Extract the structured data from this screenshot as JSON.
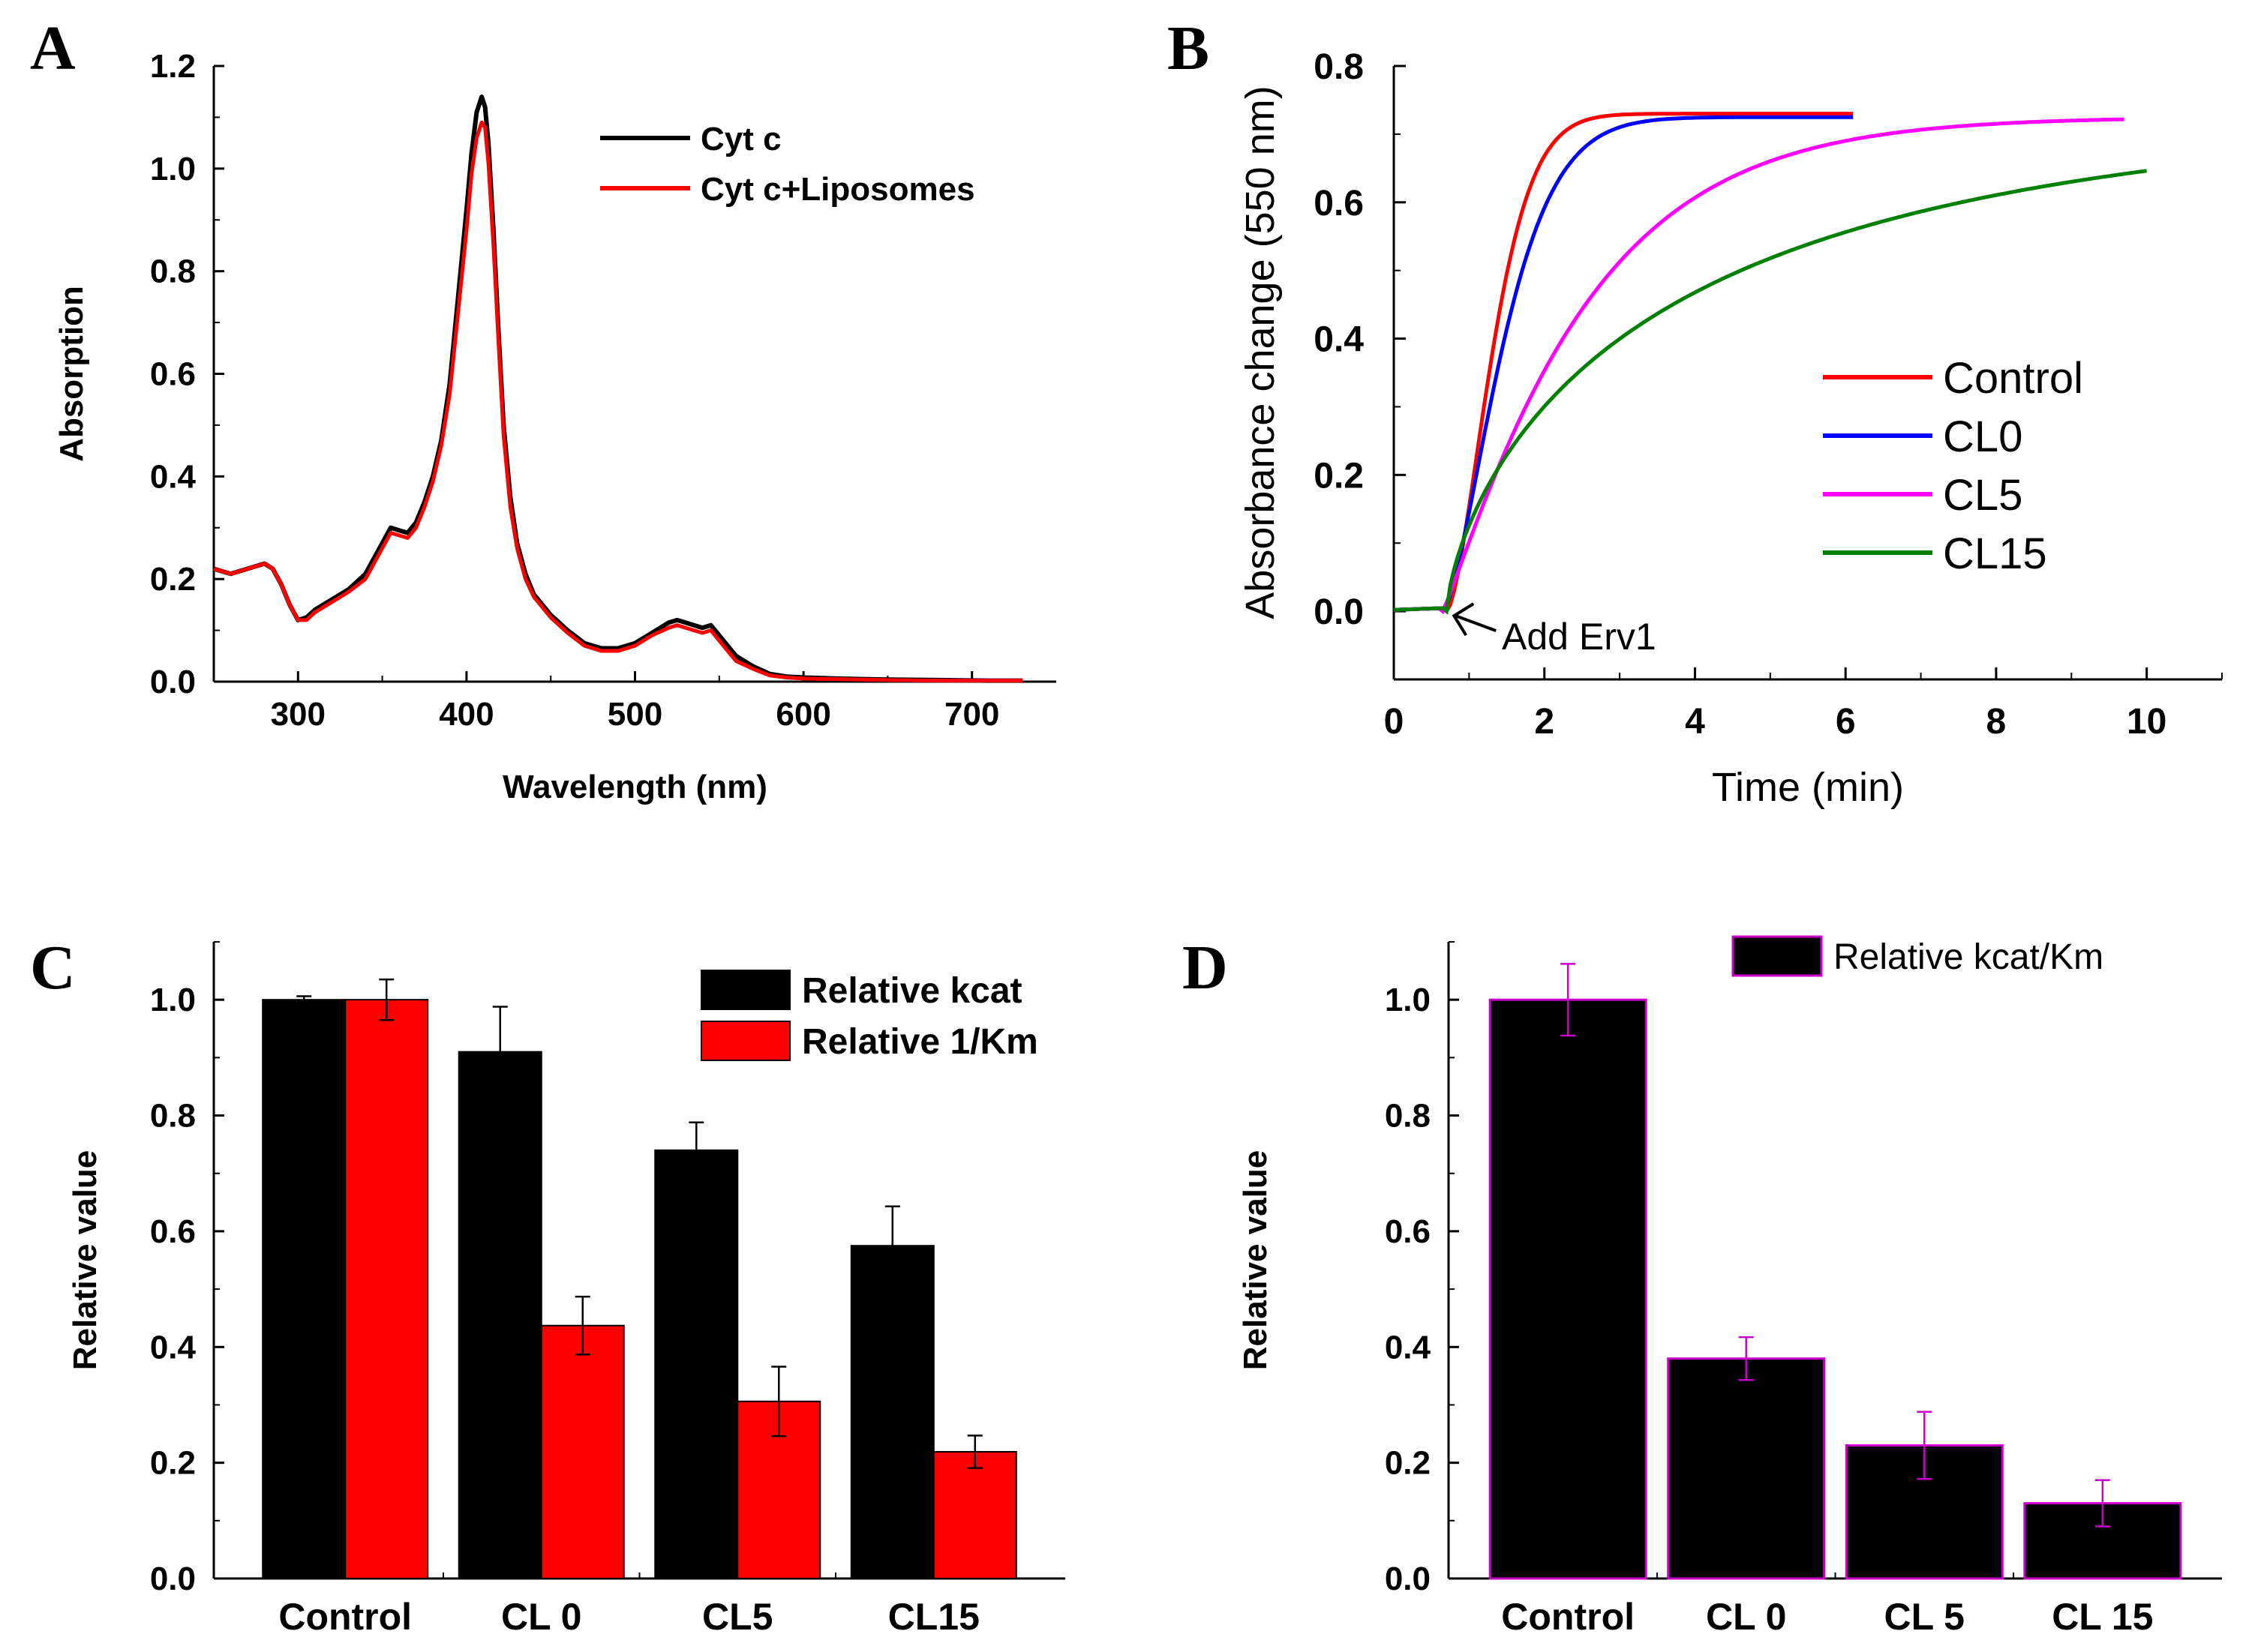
{
  "chart_data": [
    {
      "panel": "A",
      "type": "line",
      "xlabel": "Wavelength (nm)",
      "ylabel": "Absorption",
      "xlim": [
        250,
        750
      ],
      "ylim": [
        0,
        1.2
      ],
      "xticks": [
        300,
        400,
        500,
        600,
        700
      ],
      "yticks": [
        0.0,
        0.2,
        0.4,
        0.6,
        0.8,
        1.0,
        1.2
      ],
      "series": [
        {
          "name": "Cyt c",
          "color": "#000000",
          "x": [
            250,
            260,
            270,
            280,
            285,
            290,
            295,
            300,
            305,
            310,
            320,
            330,
            340,
            350,
            355,
            360,
            365,
            370,
            375,
            380,
            385,
            390,
            395,
            400,
            403,
            406,
            409,
            411,
            413,
            416,
            419,
            422,
            426,
            430,
            435,
            440,
            445,
            450,
            460,
            470,
            480,
            490,
            500,
            510,
            520,
            525,
            530,
            535,
            540,
            545,
            550,
            555,
            560,
            570,
            580,
            590,
            600,
            620,
            650,
            680,
            710,
            730
          ],
          "y": [
            0.22,
            0.21,
            0.22,
            0.23,
            0.22,
            0.19,
            0.15,
            0.12,
            0.125,
            0.14,
            0.16,
            0.18,
            0.21,
            0.27,
            0.3,
            0.295,
            0.29,
            0.31,
            0.35,
            0.4,
            0.47,
            0.58,
            0.75,
            0.92,
            1.03,
            1.11,
            1.14,
            1.12,
            1.05,
            0.88,
            0.68,
            0.5,
            0.36,
            0.27,
            0.21,
            0.17,
            0.15,
            0.13,
            0.1,
            0.075,
            0.065,
            0.065,
            0.075,
            0.095,
            0.115,
            0.12,
            0.115,
            0.11,
            0.105,
            0.11,
            0.09,
            0.07,
            0.05,
            0.03,
            0.015,
            0.01,
            0.008,
            0.006,
            0.004,
            0.003,
            0.002,
            0.002
          ]
        },
        {
          "name": "Cyt c+Liposomes",
          "color": "#ff0000",
          "x": [
            250,
            260,
            270,
            280,
            285,
            290,
            295,
            300,
            305,
            310,
            320,
            330,
            340,
            350,
            355,
            360,
            365,
            370,
            375,
            380,
            385,
            390,
            395,
            400,
            403,
            406,
            409,
            411,
            413,
            416,
            419,
            422,
            426,
            430,
            435,
            440,
            445,
            450,
            460,
            470,
            480,
            490,
            500,
            510,
            520,
            525,
            530,
            535,
            540,
            545,
            550,
            555,
            560,
            570,
            580,
            590,
            600,
            620,
            650,
            680,
            710,
            730
          ],
          "y": [
            0.22,
            0.21,
            0.22,
            0.23,
            0.22,
            0.19,
            0.15,
            0.12,
            0.12,
            0.135,
            0.155,
            0.175,
            0.2,
            0.26,
            0.29,
            0.285,
            0.28,
            0.3,
            0.34,
            0.39,
            0.46,
            0.56,
            0.72,
            0.88,
            0.99,
            1.06,
            1.09,
            1.08,
            1.01,
            0.85,
            0.66,
            0.48,
            0.34,
            0.26,
            0.2,
            0.165,
            0.145,
            0.125,
            0.095,
            0.07,
            0.06,
            0.06,
            0.07,
            0.09,
            0.105,
            0.11,
            0.105,
            0.1,
            0.095,
            0.1,
            0.08,
            0.06,
            0.04,
            0.025,
            0.012,
            0.008,
            0.006,
            0.005,
            0.003,
            0.002,
            0.002,
            0.002
          ]
        }
      ],
      "legend": [
        "Cyt c",
        "Cyt c+Liposomes"
      ]
    },
    {
      "panel": "B",
      "type": "line",
      "xlabel": "Time (min)",
      "ylabel": "Absorbance change (550 nm)",
      "xlim": [
        0,
        11
      ],
      "ylim": [
        -0.1,
        0.8
      ],
      "xticks": [
        0,
        2,
        4,
        6,
        8,
        10
      ],
      "yticks": [
        0.0,
        0.2,
        0.4,
        0.6,
        0.8
      ],
      "annotation": "Add Erv1",
      "annotation_at": [
        0.7,
        0.0
      ],
      "series": [
        {
          "name": "Control",
          "color": "#ff0000",
          "start": 0.7,
          "end": 6.1,
          "plateau": 0.73,
          "tau": 0.74,
          "delay": 1.3
        },
        {
          "name": "CL0",
          "color": "#0000ff",
          "start": 0.65,
          "end": 6.1,
          "plateau": 0.725,
          "tau": 0.95,
          "delay": 1.2
        },
        {
          "name": "CL5",
          "color": "#ff00ff",
          "start": 0.65,
          "end": 9.7,
          "plateau": 0.725,
          "tau": 1.95,
          "delay": 0.8
        },
        {
          "name": "CL15",
          "color": "#008000",
          "start": 0.7,
          "end": 10.0,
          "plateau": 0.74,
          "tau": 3.3,
          "delay": 0.4
        }
      ],
      "legend": [
        "Control",
        "CL0",
        "CL5",
        "CL15"
      ]
    },
    {
      "panel": "C",
      "type": "bar",
      "ylabel": "Relative value",
      "ylim": [
        0,
        1.1
      ],
      "yticks": [
        0.0,
        0.2,
        0.4,
        0.6,
        0.8,
        1.0
      ],
      "categories": [
        "Control",
        "CL 0",
        "CL5",
        "CL15"
      ],
      "series": [
        {
          "name": "Relative kcat",
          "color": "#000000",
          "values": [
            1.0,
            0.91,
            0.74,
            0.575
          ],
          "errors": [
            0.006,
            0.078,
            0.048,
            0.068
          ]
        },
        {
          "name": "Relative 1/Km",
          "color": "#ff0000",
          "values": [
            1.0,
            0.437,
            0.306,
            0.219
          ],
          "errors": [
            0.035,
            0.05,
            0.06,
            0.028
          ]
        }
      ]
    },
    {
      "panel": "D",
      "type": "bar",
      "ylabel": "Relative value",
      "ylim": [
        0,
        1.1
      ],
      "yticks": [
        0.0,
        0.2,
        0.4,
        0.6,
        0.8,
        1.0
      ],
      "categories": [
        "Control",
        "CL 0",
        "CL 5",
        "CL 15"
      ],
      "series": [
        {
          "name": "Relative kcat/Km",
          "color": "#000000",
          "edge": "#cc00cc",
          "values": [
            1.0,
            0.38,
            0.23,
            0.13
          ],
          "errors": [
            0.062,
            0.037,
            0.058,
            0.04
          ]
        }
      ]
    }
  ],
  "panels": {
    "A": {
      "label": "A"
    },
    "B": {
      "label": "B"
    },
    "C": {
      "label": "C"
    },
    "D": {
      "label": "D"
    }
  }
}
